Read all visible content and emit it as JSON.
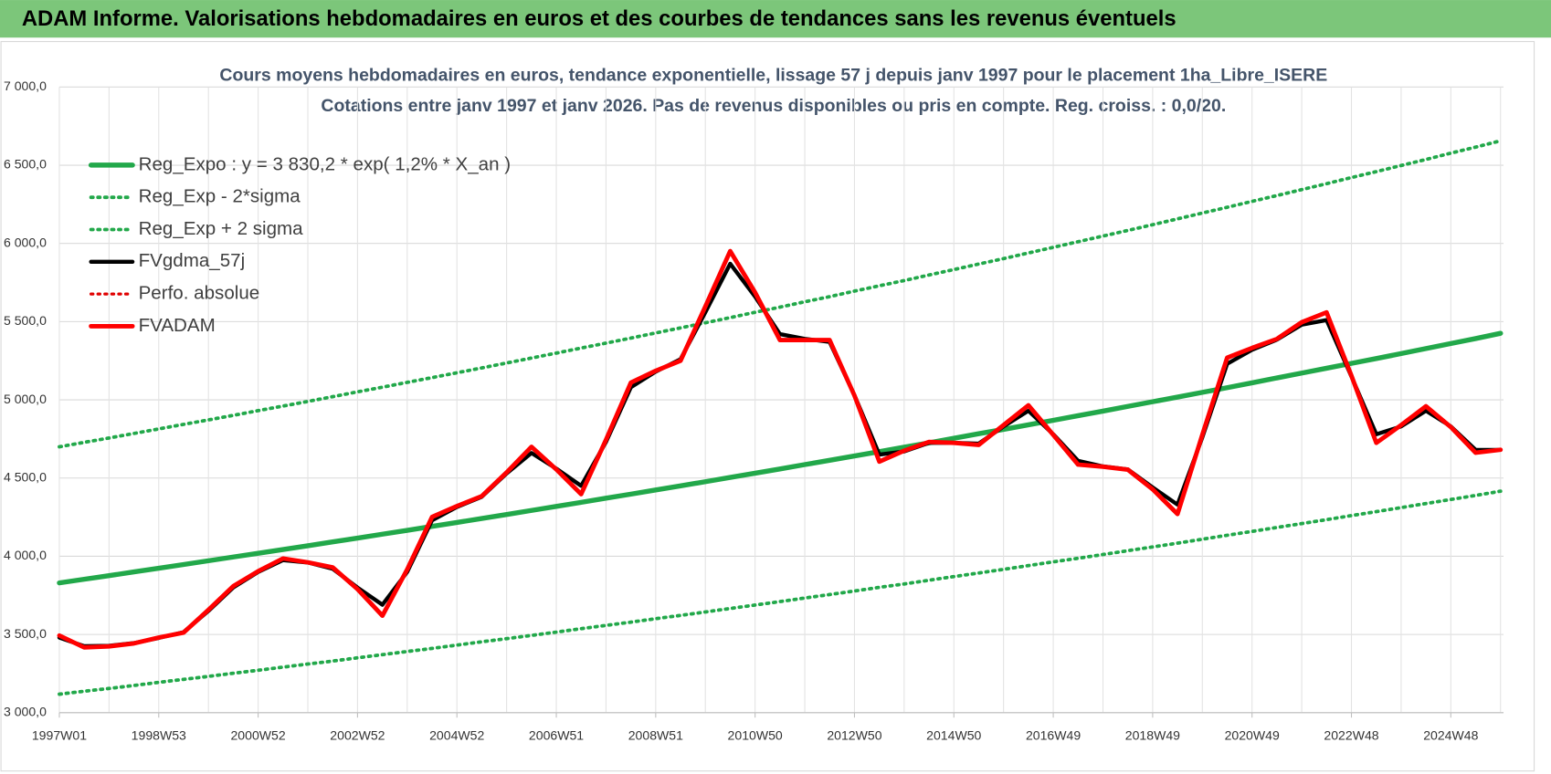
{
  "header": {
    "title": "ADAM Informe. Valorisations hebdomadaires en euros et des courbes de tendances sans les revenus éventuels"
  },
  "chart_data": {
    "type": "line",
    "title": "Cours moyens  hebdomadaires en euros, tendance exponentielle, lissage 57 j depuis janv 1997 pour le placement 1ha_Libre_ISERE",
    "subtitle": "Cotations entre janv 1997 et janv 2026. Pas de revenus disponibles ou pris  en compte. Reg. croiss. : 0,0/20.",
    "categories": [
      "1997W01",
      null,
      null,
      null,
      "1998W53",
      null,
      null,
      null,
      "2000W52",
      null,
      null,
      null,
      "2002W52",
      null,
      null,
      null,
      "2004W52",
      null,
      null,
      null,
      "2006W51",
      null,
      null,
      null,
      "2008W51",
      null,
      null,
      null,
      "2010W50",
      null,
      null,
      null,
      "2012W50",
      null,
      null,
      null,
      "2014W50",
      null,
      null,
      null,
      "2016W49",
      null,
      null,
      null,
      "2018W49",
      null,
      null,
      null,
      "2020W49",
      null,
      null,
      null,
      "2022W48",
      null,
      null,
      null,
      "2024W48",
      null,
      null
    ],
    "ylim": [
      3000,
      7000
    ],
    "yticks": [
      {
        "value": 3000,
        "label": "3 000,0"
      },
      {
        "value": 3500,
        "label": "3 500,0"
      },
      {
        "value": 4000,
        "label": "4 000,0"
      },
      {
        "value": 4500,
        "label": "4 500,0"
      },
      {
        "value": 5000,
        "label": "5 000,0"
      },
      {
        "value": 5500,
        "label": "5 500,0"
      },
      {
        "value": 6000,
        "label": "6 000,0"
      },
      {
        "value": 6500,
        "label": "6 500,0"
      },
      {
        "value": 7000,
        "label": "7 000,0"
      }
    ],
    "grid": true,
    "legend": "upper left",
    "series": [
      {
        "name": "Reg_Expo : y = 3 830,2 * exp( 1,2% *  X_an )",
        "color": "#22a84a",
        "style": "solid",
        "width": 5,
        "values": [
          3830,
          3853,
          3876,
          3900,
          3923,
          3947,
          3971,
          3995,
          4019,
          4043,
          4067,
          4092,
          4116,
          4141,
          4166,
          4191,
          4216,
          4242,
          4267,
          4293,
          4319,
          4345,
          4371,
          4397,
          4424,
          4450,
          4477,
          4504,
          4531,
          4558,
          4586,
          4613,
          4641,
          4669,
          4697,
          4725,
          4754,
          4783,
          4811,
          4840,
          4869,
          4899,
          4928,
          4958,
          4988,
          5018,
          5048,
          5078,
          5109,
          5140,
          5171,
          5202,
          5233,
          5264,
          5296,
          5328,
          5360,
          5392,
          5425
        ]
      },
      {
        "name": "Reg_Exp - 2*sigma",
        "color": "#22a84a",
        "style": "dotted",
        "width": 3.5,
        "values": [
          3118,
          3137,
          3155,
          3174,
          3194,
          3213,
          3232,
          3252,
          3271,
          3291,
          3311,
          3330,
          3351,
          3371,
          3391,
          3411,
          3432,
          3453,
          3473,
          3494,
          3515,
          3537,
          3558,
          3579,
          3601,
          3622,
          3644,
          3666,
          3688,
          3710,
          3733,
          3755,
          3778,
          3801,
          3823,
          3847,
          3870,
          3893,
          3916,
          3940,
          3964,
          3987,
          4011,
          4036,
          4060,
          4084,
          4109,
          4134,
          4159,
          4184,
          4209,
          4234,
          4260,
          4285,
          4311,
          4337,
          4363,
          4389,
          4416
        ]
      },
      {
        "name": "Reg_Exp + 2 sigma",
        "color": "#22a84a",
        "style": "dotted",
        "width": 3.5,
        "values": [
          4700,
          4728,
          4756,
          4785,
          4814,
          4843,
          4872,
          4901,
          4931,
          4960,
          4990,
          5020,
          5051,
          5081,
          5112,
          5142,
          5173,
          5204,
          5236,
          5267,
          5299,
          5331,
          5363,
          5395,
          5428,
          5460,
          5493,
          5526,
          5560,
          5593,
          5627,
          5660,
          5695,
          5729,
          5763,
          5798,
          5833,
          5868,
          5903,
          5939,
          5975,
          6011,
          6047,
          6083,
          6120,
          6157,
          6194,
          6231,
          6269,
          6306,
          6344,
          6382,
          6421,
          6459,
          6498,
          6537,
          6577,
          6616,
          6656
        ]
      },
      {
        "name": "FVgdma_57j",
        "color": "#000000",
        "style": "solid",
        "width": 4,
        "values": [
          3480,
          3425,
          3428,
          3445,
          3478,
          3515,
          3650,
          3800,
          3900,
          3975,
          3960,
          3920,
          3800,
          3690,
          3900,
          4230,
          4315,
          4380,
          4530,
          4660,
          4560,
          4450,
          4730,
          5080,
          5180,
          5260,
          5560,
          5870,
          5660,
          5420,
          5390,
          5370,
          5030,
          4650,
          4670,
          4725,
          4725,
          4720,
          4830,
          4930,
          4780,
          4610,
          4575,
          4555,
          4440,
          4330,
          4760,
          5230,
          5320,
          5385,
          5480,
          5510,
          5150,
          4780,
          4830,
          4930,
          4830,
          4680,
          4680
        ]
      },
      {
        "name": "Perfo. absolue",
        "color": "#e00000",
        "style": "dotted",
        "width": 3,
        "values": [
          3493,
          3417,
          3424,
          3443,
          3480,
          3512,
          3657,
          3809,
          3904,
          3986,
          3961,
          3929,
          3790,
          3620,
          3916,
          4251,
          4321,
          4384,
          4536,
          4700,
          4555,
          4397,
          4744,
          5110,
          5186,
          5250,
          5597,
          5951,
          5686,
          5382,
          5382,
          5382,
          5028,
          4605,
          4675,
          4731,
          4725,
          4712,
          4839,
          4965,
          4776,
          4586,
          4573,
          4554,
          4428,
          4270,
          4776,
          5269,
          5332,
          5389,
          5496,
          5559,
          5155,
          4725,
          4839,
          4959,
          4826,
          4662,
          4681
        ]
      },
      {
        "name": "FVADAM",
        "color": "#ff0000",
        "style": "solid",
        "width": 4.5,
        "values": [
          3493,
          3417,
          3424,
          3443,
          3480,
          3512,
          3657,
          3809,
          3904,
          3986,
          3961,
          3929,
          3790,
          3620,
          3916,
          4251,
          4321,
          4384,
          4536,
          4700,
          4555,
          4397,
          4744,
          5110,
          5186,
          5250,
          5597,
          5951,
          5686,
          5382,
          5382,
          5382,
          5028,
          4605,
          4675,
          4731,
          4725,
          4712,
          4839,
          4965,
          4776,
          4586,
          4573,
          4554,
          4428,
          4270,
          4776,
          5269,
          5332,
          5389,
          5496,
          5559,
          5155,
          4725,
          4839,
          4959,
          4826,
          4662,
          4681
        ]
      }
    ]
  }
}
